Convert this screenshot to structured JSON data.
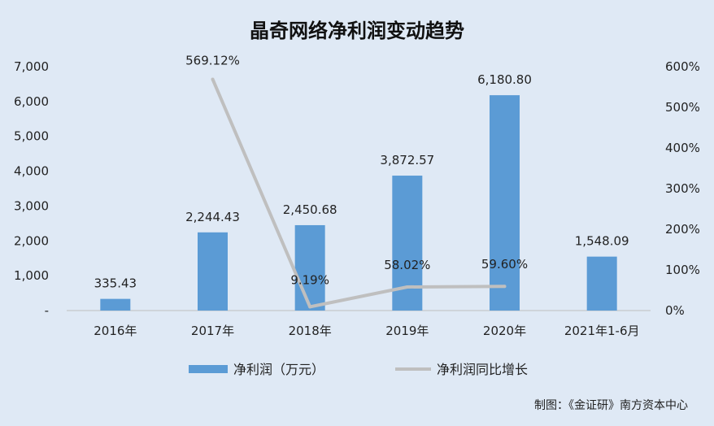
{
  "chart_data": {
    "type": "bar",
    "title": "晶奇网络净利润变动趋势",
    "categories": [
      "2016年",
      "2017年",
      "2018年",
      "2019年",
      "2020年",
      "2021年1-6月"
    ],
    "series": [
      {
        "name": "净利润（万元）",
        "type": "bar",
        "axis": "left",
        "values": [
          335.43,
          2244.43,
          2450.68,
          3872.57,
          6180.8,
          1548.09
        ],
        "labels": [
          "335.43",
          "2,244.43",
          "2,450.68",
          "3,872.57",
          "6,180.80",
          "1,548.09"
        ]
      },
      {
        "name": "净利润同比增长",
        "type": "line",
        "axis": "right",
        "values": [
          null,
          569.12,
          9.19,
          58.02,
          59.6,
          null
        ],
        "labels": [
          "",
          "569.12%",
          "9.19%",
          "58.02%",
          "59.60%",
          ""
        ]
      }
    ],
    "y_left": {
      "min": 0,
      "max": 7000,
      "ticks": [
        0,
        1000,
        2000,
        3000,
        4000,
        5000,
        6000,
        7000
      ],
      "tick_labels": [
        "-",
        "1,000",
        "2,000",
        "3,000",
        "4,000",
        "5,000",
        "6,000",
        "7,000"
      ]
    },
    "y_right": {
      "min": 0,
      "max": 600,
      "ticks": [
        0,
        100,
        200,
        300,
        400,
        500,
        600
      ],
      "tick_labels": [
        "0%",
        "100%",
        "200%",
        "300%",
        "400%",
        "500%",
        "600%"
      ]
    },
    "legend_position": "bottom",
    "grid": false,
    "colors": {
      "bar": "#5b9bd5",
      "line": "#bfbfbf",
      "background": "#dfe9f5"
    },
    "credit": "制图：《金证研》南方资本中心"
  }
}
